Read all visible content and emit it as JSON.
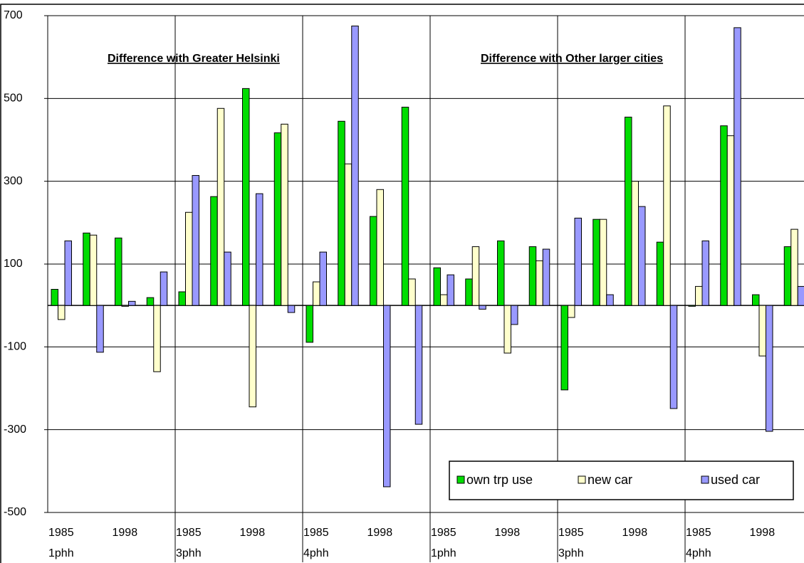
{
  "chart_data": {
    "type": "bar",
    "categories": [
      "1985",
      null,
      "1998",
      null,
      "1985",
      null,
      "1998",
      null,
      "1985",
      null,
      "1998",
      null,
      "1985",
      null,
      "1998",
      null,
      "1985",
      null,
      "1998",
      null,
      "1985",
      null,
      "1998",
      null
    ],
    "groups": [
      "1phh",
      "3phh",
      "4phh",
      "1phh",
      "3phh",
      "4phh"
    ],
    "annotations": [
      "Difference with Greater Helsinki",
      "Difference with Other larger cities"
    ],
    "series": [
      {
        "name": "own trp use",
        "color": "#00dd00",
        "values": [
          39,
          175,
          163,
          19,
          33,
          263,
          524,
          417,
          -89,
          445,
          215,
          479,
          91,
          64,
          156,
          142,
          -204,
          208,
          455,
          153,
          -2,
          434,
          26,
          142
        ]
      },
      {
        "name": "new car",
        "color": "#ffffcc",
        "values": [
          -34,
          170,
          -2,
          -160,
          225,
          476,
          -245,
          438,
          57,
          342,
          280,
          64,
          26,
          142,
          -115,
          108,
          -29,
          208,
          300,
          482,
          46,
          410,
          -122,
          184
        ]
      },
      {
        "name": "used car",
        "color": "#9999ff",
        "values": [
          156,
          -113,
          10,
          81,
          314,
          129,
          270,
          -17,
          129,
          675,
          -438,
          -287,
          74,
          -9,
          -46,
          136,
          211,
          26,
          239,
          -249,
          156,
          671,
          -304,
          46
        ]
      }
    ],
    "ylim": [
      -500,
      700
    ],
    "yticks": [
      -500,
      -300,
      -100,
      100,
      300,
      500,
      700
    ],
    "grid": true,
    "legend": "bottom-right"
  }
}
